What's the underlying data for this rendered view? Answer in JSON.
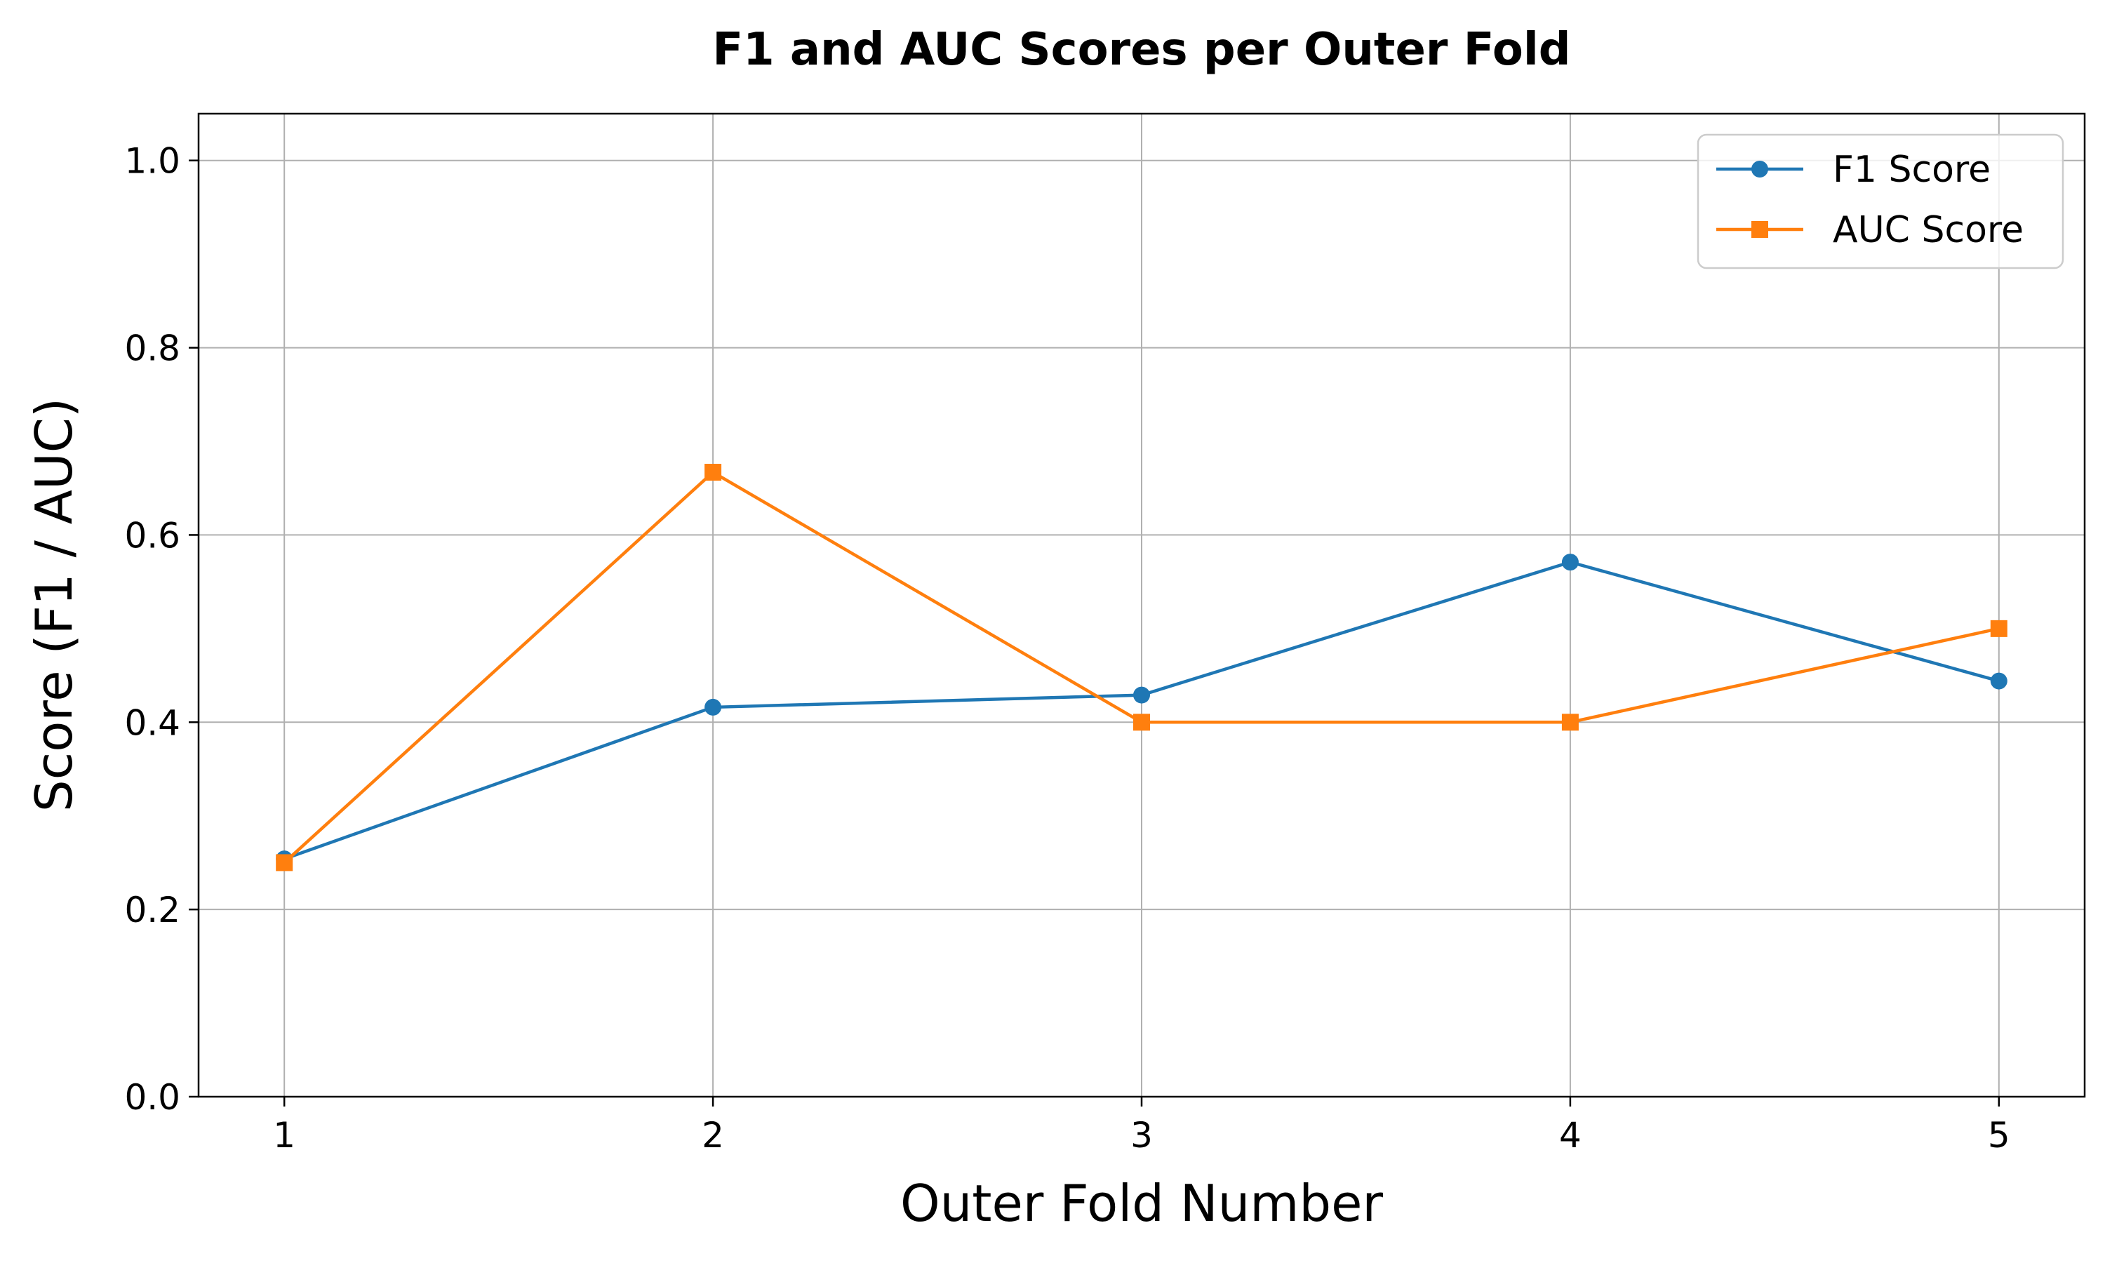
{
  "chart_data": {
    "type": "line",
    "title": "F1 and AUC Scores per Outer Fold",
    "xlabel": "Outer Fold Number",
    "ylabel": "Score (F1 / AUC)",
    "x": [
      1,
      2,
      3,
      4,
      5
    ],
    "xlim": [
      0.8,
      5.2
    ],
    "ylim": [
      0.0,
      1.05
    ],
    "xticks": [
      "1",
      "2",
      "3",
      "4",
      "5"
    ],
    "yticks": [
      "0.0",
      "0.2",
      "0.4",
      "0.6",
      "0.8",
      "1.0"
    ],
    "grid": true,
    "legend_position": "top-right",
    "series": [
      {
        "name": "F1 Score",
        "marker": "circle",
        "color": "#1f77b4",
        "values": [
          0.254,
          0.416,
          0.429,
          0.571,
          0.444
        ]
      },
      {
        "name": "AUC Score",
        "marker": "square",
        "color": "#ff7f0e",
        "values": [
          0.25,
          0.667,
          0.4,
          0.4,
          0.5
        ]
      }
    ]
  }
}
